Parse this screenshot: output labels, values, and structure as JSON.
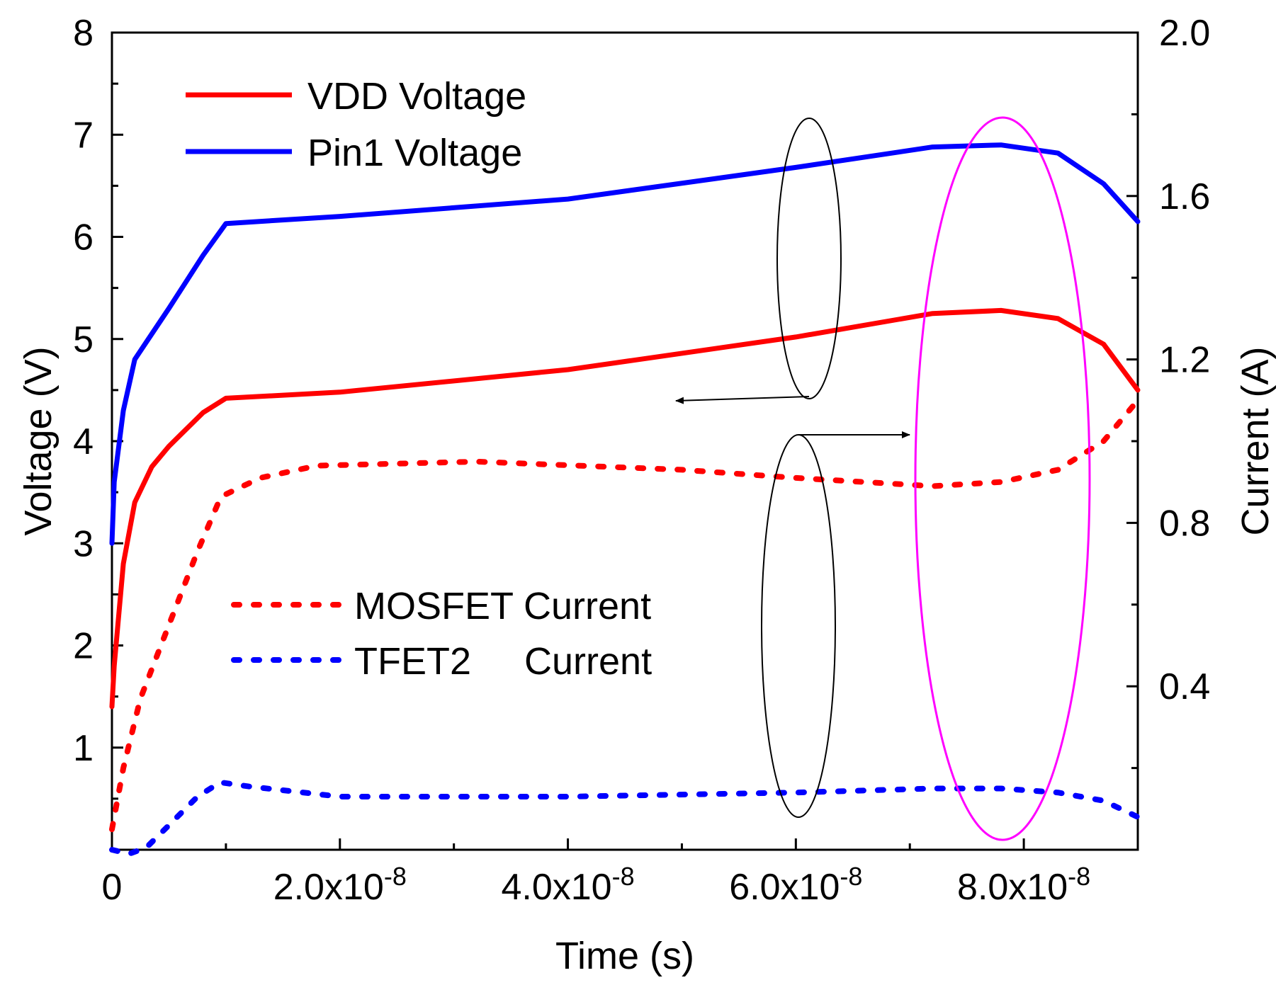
{
  "chart_data": {
    "type": "line",
    "title": "",
    "xlabel": "Time (s)",
    "ylabel": "Voltage (V)",
    "y2label": "Current (A)",
    "xlim": [
      0,
      9e-08
    ],
    "ylim": [
      0,
      8
    ],
    "y2lim": [
      0,
      2.0
    ],
    "x_ticks": [
      {
        "value": 0,
        "label": "0",
        "sup": ""
      },
      {
        "value": 2e-08,
        "label": "2.0x10",
        "sup": "-8"
      },
      {
        "value": 4e-08,
        "label": "4.0x10",
        "sup": "-8"
      },
      {
        "value": 6e-08,
        "label": "6.0x10",
        "sup": "-8"
      },
      {
        "value": 8e-08,
        "label": "8.0x10",
        "sup": "-8"
      }
    ],
    "y_ticks": [
      "1",
      "2",
      "3",
      "4",
      "5",
      "6",
      "7",
      "8"
    ],
    "y2_ticks": [
      "0.4",
      "0.8",
      "1.2",
      "1.6",
      "2.0"
    ],
    "series": [
      {
        "name": "VDD Voltage",
        "axis": "left",
        "color": "#ff0000",
        "style": "solid",
        "x": [
          0,
          2e-10,
          1e-09,
          2e-09,
          3.5e-09,
          5e-09,
          8e-09,
          1e-08,
          2e-08,
          4e-08,
          6e-08,
          7.2e-08,
          7.8e-08,
          8.3e-08,
          8.7e-08,
          9e-08
        ],
        "y": [
          1.4,
          1.8,
          2.8,
          3.4,
          3.75,
          3.95,
          4.28,
          4.42,
          4.48,
          4.7,
          5.02,
          5.25,
          5.28,
          5.2,
          4.95,
          4.5
        ]
      },
      {
        "name": "Pin1 Voltage",
        "axis": "left",
        "color": "#0000ff",
        "style": "solid",
        "x": [
          0,
          2e-10,
          1e-09,
          2e-09,
          3.5e-09,
          5e-09,
          8e-09,
          1e-08,
          2e-08,
          4e-08,
          6e-08,
          7.2e-08,
          7.8e-08,
          8.3e-08,
          8.7e-08,
          9e-08
        ],
        "y": [
          3.0,
          3.6,
          4.3,
          4.8,
          5.05,
          5.3,
          5.82,
          6.13,
          6.2,
          6.37,
          6.68,
          6.88,
          6.9,
          6.82,
          6.52,
          6.15
        ]
      },
      {
        "name": "MOSFET Current",
        "axis": "right",
        "color": "#ff0000",
        "style": "dotted",
        "x": [
          0,
          1e-09,
          2.5e-09,
          5e-09,
          7.5e-09,
          9.5e-09,
          1e-08,
          1.3e-08,
          1.8e-08,
          3.2e-08,
          5e-08,
          6e-08,
          7.2e-08,
          7.8e-08,
          8.3e-08,
          8.7e-08,
          9e-08
        ],
        "y": [
          0.05,
          0.2,
          0.37,
          0.55,
          0.73,
          0.86,
          0.87,
          0.91,
          0.94,
          0.95,
          0.93,
          0.91,
          0.89,
          0.9,
          0.93,
          1.0,
          1.1
        ]
      },
      {
        "name": "TFET2 Current",
        "axis": "right",
        "color": "#0000ff",
        "style": "dotted",
        "x": [
          0,
          1.5e-09,
          3e-09,
          5e-09,
          7.5e-09,
          9.5e-09,
          1.2e-08,
          2e-08,
          4e-08,
          6e-08,
          7.2e-08,
          7.8e-08,
          8.3e-08,
          8.7e-08,
          9e-08
        ],
        "y": [
          0.0,
          -0.01,
          0.005,
          0.06,
          0.13,
          0.165,
          0.155,
          0.13,
          0.13,
          0.14,
          0.15,
          0.15,
          0.14,
          0.12,
          0.08
        ]
      }
    ],
    "legend": [
      {
        "label": "VDD Voltage",
        "series": 0,
        "position": "top-left"
      },
      {
        "label": "Pin1 Voltage",
        "series": 1,
        "position": "top-left"
      },
      {
        "label": "MOSFET Current",
        "series": 2,
        "position": "center-left"
      },
      {
        "label": "TFET2     Current",
        "series": 3,
        "position": "center-left"
      }
    ],
    "annotations": [
      {
        "type": "ellipse",
        "color": "#000000",
        "target": "voltage curves",
        "arrow": "points to left axis"
      },
      {
        "type": "ellipse",
        "color": "#000000",
        "target": "current curves",
        "arrow": "points to right axis"
      },
      {
        "type": "ellipse",
        "color": "#ff00ff",
        "target": "peak region near 7.8x10^-8 s"
      }
    ]
  }
}
